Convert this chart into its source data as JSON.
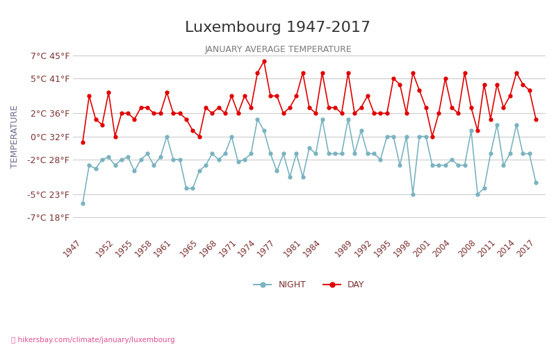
{
  "title": "Luxembourg 1947-2017",
  "subtitle": "JANUARY AVERAGE TEMPERATURE",
  "ylabel": "TEMPERATURE",
  "xlabel_url": "hikersbay.com/climate/january/luxembourg",
  "years": [
    1947,
    1948,
    1949,
    1950,
    1951,
    1952,
    1953,
    1954,
    1955,
    1956,
    1957,
    1958,
    1959,
    1960,
    1961,
    1962,
    1963,
    1964,
    1965,
    1966,
    1967,
    1968,
    1969,
    1970,
    1971,
    1972,
    1973,
    1974,
    1975,
    1976,
    1977,
    1978,
    1979,
    1980,
    1981,
    1982,
    1983,
    1984,
    1985,
    1986,
    1987,
    1988,
    1989,
    1990,
    1991,
    1992,
    1993,
    1994,
    1995,
    1996,
    1997,
    1998,
    1999,
    2000,
    2001,
    2002,
    2003,
    2004,
    2005,
    2006,
    2007,
    2008,
    2009,
    2010,
    2011,
    2012,
    2013,
    2014,
    2015,
    2016,
    2017
  ],
  "day_temps": [
    -0.5,
    3.5,
    1.5,
    1.0,
    3.8,
    0.0,
    2.0,
    2.0,
    1.5,
    2.5,
    2.5,
    2.0,
    2.0,
    3.8,
    2.0,
    2.0,
    1.5,
    0.5,
    0.0,
    2.5,
    2.0,
    2.5,
    2.0,
    3.5,
    2.0,
    3.5,
    2.5,
    5.5,
    6.5,
    3.5,
    3.5,
    2.0,
    2.5,
    3.5,
    5.5,
    2.5,
    2.0,
    5.5,
    2.5,
    2.5,
    2.0,
    5.5,
    2.0,
    2.5,
    3.5,
    2.0,
    2.0,
    2.0,
    5.0,
    4.5,
    2.0,
    5.5,
    4.0,
    2.5,
    0.0,
    2.0,
    5.0,
    2.5,
    2.0,
    5.5,
    2.5,
    0.5,
    4.5,
    1.5,
    4.5,
    2.5,
    3.5,
    5.5,
    4.5,
    4.0,
    1.5
  ],
  "night_temps": [
    -5.8,
    -2.5,
    -2.8,
    -2.0,
    -1.8,
    -2.5,
    -2.0,
    -1.8,
    -3.0,
    -2.0,
    -1.5,
    -2.5,
    -1.8,
    0.0,
    -2.0,
    -2.0,
    -4.5,
    -4.5,
    -3.0,
    -2.5,
    -1.5,
    -2.0,
    -1.5,
    0.0,
    -2.2,
    -2.0,
    -1.5,
    1.5,
    0.5,
    -1.5,
    -3.0,
    -1.5,
    -3.5,
    -1.5,
    -3.5,
    -1.0,
    -1.5,
    1.5,
    -1.5,
    -1.5,
    -1.5,
    1.5,
    -1.5,
    0.5,
    -1.5,
    -1.5,
    -2.0,
    0.0,
    0.0,
    -2.5,
    0.0,
    -5.0,
    0.0,
    0.0,
    -2.5,
    -2.5,
    -2.5,
    -2.0,
    -2.5,
    -2.5,
    0.5,
    -5.0,
    -4.5,
    -1.5,
    1.0,
    -2.5,
    -1.5,
    1.0,
    -1.5,
    -1.5,
    -4.0
  ],
  "day_color": "#e00000",
  "night_color": "#7ab3c0",
  "background_color": "#ffffff",
  "grid_color": "#cccccc",
  "title_color": "#333333",
  "subtitle_color": "#7a7a7a",
  "label_color": "#7a3030",
  "ylabel_color": "#6a6a8a",
  "yticks_c": [
    -7,
    -5,
    -2,
    0,
    2,
    5,
    7
  ],
  "yticks_f": [
    18,
    23,
    28,
    32,
    36,
    41,
    45
  ],
  "ylim": [
    -8.5,
    8.5
  ],
  "xtick_years": [
    1947,
    1952,
    1955,
    1958,
    1961,
    1965,
    1968,
    1971,
    1974,
    1977,
    1981,
    1984,
    1989,
    1992,
    1995,
    1998,
    2001,
    2004,
    2008,
    2011,
    2014,
    2017
  ],
  "legend_night_label": "NIGHT",
  "legend_day_label": "DAY"
}
